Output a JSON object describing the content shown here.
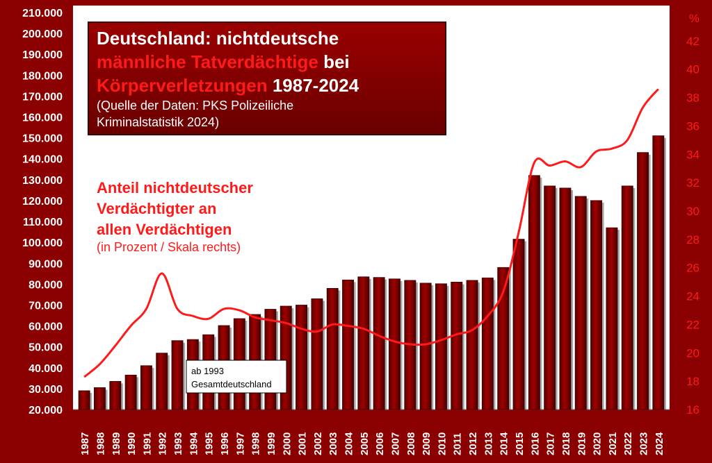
{
  "chart_data": {
    "type": "bar",
    "title_line1": "Deutschland: nichtdeutsche",
    "title_line2_red": "männliche Tatverdächtige",
    "title_line2_white": " bei",
    "title_line3_red": "Körperverletzungen",
    "title_line3_white": " 1987-2024",
    "source_line1": "(Quelle der Daten: PKS Polizeiliche",
    "source_line2": "Kriminalstatistik 2024)",
    "annotation_lines": [
      "Anteil nichtdeutscher",
      "Verdächtigter  an",
      "allen Verdächtigen"
    ],
    "annotation_sub": "(in Prozent / Skala rechts)",
    "note_lines": [
      "ab 1993",
      "Gesamtdeutschland"
    ],
    "right_axis_unit": "%",
    "categories": [
      "1987",
      "1988",
      "1989",
      "1990",
      "1991",
      "1992",
      "1993",
      "1994",
      "1995",
      "1996",
      "1997",
      "1998",
      "1999",
      "2000",
      "2001",
      "2002",
      "2003",
      "2004",
      "2005",
      "2006",
      "2007",
      "2008",
      "2009",
      "2010",
      "2011",
      "2012",
      "2013",
      "2014",
      "2015",
      "2016",
      "2017",
      "2018",
      "2019",
      "2020",
      "2021",
      "2022",
      "2023",
      "2024"
    ],
    "series": [
      {
        "values": [
          29000,
          30500,
          33500,
          36500,
          41000,
          47000,
          53000,
          53500,
          55800,
          60200,
          63500,
          65500,
          68000,
          69500,
          70000,
          73000,
          78000,
          82000,
          83500,
          83200,
          82500,
          81800,
          80500,
          80200,
          81000,
          81800,
          83000,
          88000,
          101500,
          132000,
          127000,
          126000,
          122000,
          120000,
          107000,
          127000,
          143000,
          151000
        ]
      },
      {
        "values": [
          18.3,
          19.2,
          20.5,
          21.9,
          23.1,
          25.6,
          23.1,
          22.6,
          22.4,
          23.1,
          23.0,
          22.5,
          22.3,
          22.1,
          21.7,
          21.5,
          22.0,
          21.9,
          21.7,
          21.2,
          20.8,
          20.6,
          20.6,
          20.9,
          21.3,
          21.6,
          22.6,
          24.3,
          28.5,
          33.4,
          33.2,
          33.5,
          33.1,
          34.2,
          34.4,
          35.0,
          37.3,
          38.6
        ]
      }
    ],
    "y_left": {
      "min": 20000,
      "max": 210000,
      "step": 10000
    },
    "y_right": {
      "min": 16,
      "max": 44,
      "ticks": [
        16,
        18,
        20,
        22,
        24,
        26,
        28,
        30,
        32,
        34,
        36,
        38,
        40,
        42
      ],
      "top_label": "%"
    },
    "grid": false,
    "colors": {
      "background": "#8b0000",
      "plot": "#ffffff",
      "bar": "#7a0000",
      "line": "#ff1a1a",
      "title_red": "#ff1a1a"
    }
  }
}
